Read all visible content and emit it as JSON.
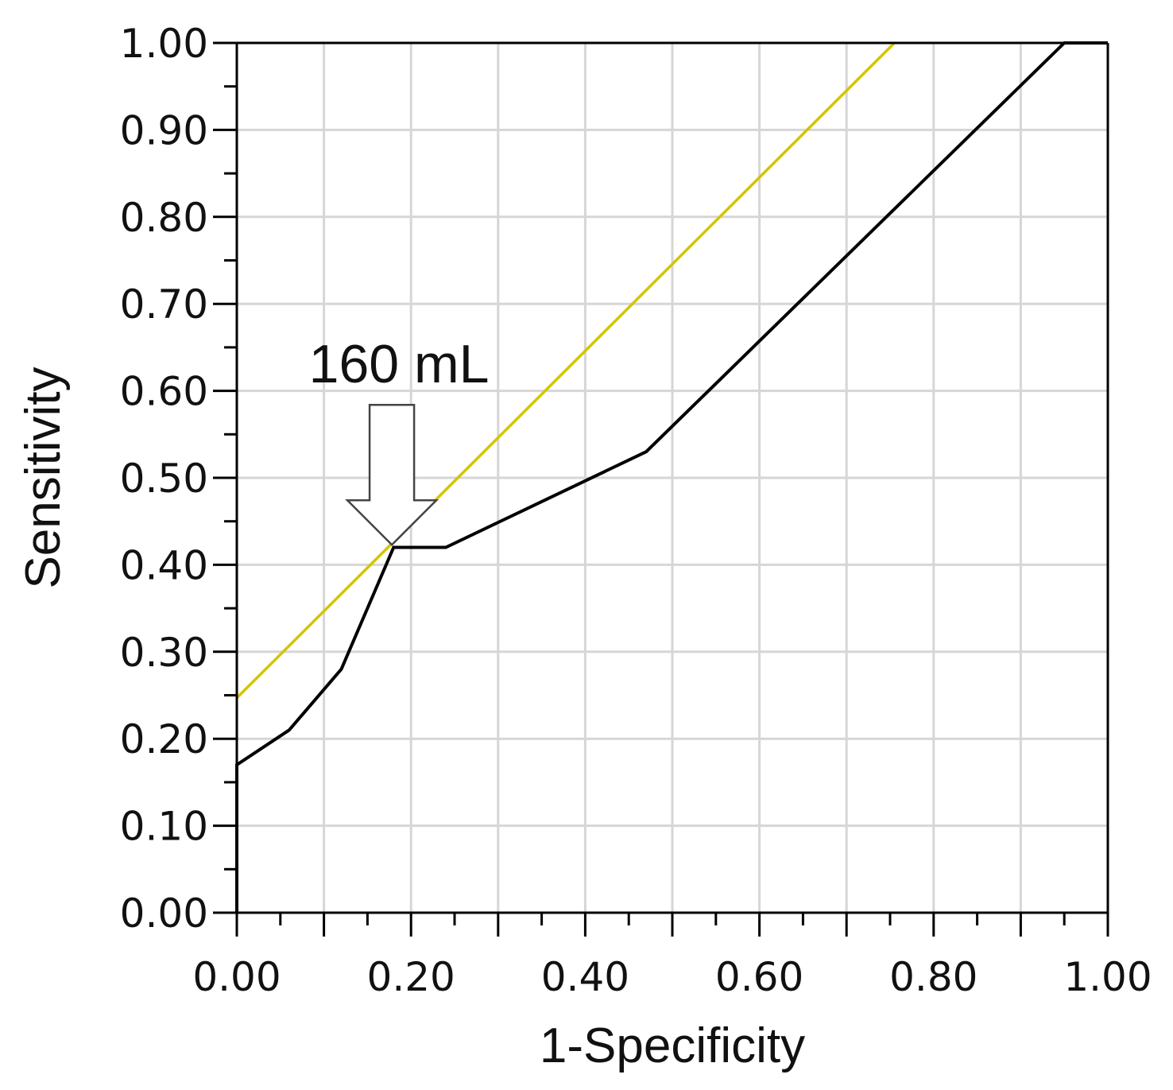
{
  "chart_data": {
    "type": "line",
    "title": "",
    "xlabel": "1-Specificity",
    "ylabel": "Sensitivity",
    "xlim": [
      0,
      1
    ],
    "ylim": [
      0,
      1
    ],
    "grid": true,
    "x_ticks": [
      "0.00",
      "0.20",
      "0.40",
      "0.60",
      "0.80",
      "1.00"
    ],
    "y_ticks": [
      "0.00",
      "0.10",
      "0.20",
      "0.30",
      "0.40",
      "0.50",
      "0.60",
      "0.70",
      "0.80",
      "0.90",
      "1.00"
    ],
    "series": [
      {
        "color": "#000000",
        "x": [
          0.0,
          0.0,
          0.06,
          0.12,
          0.18,
          0.24,
          0.47,
          0.95,
          1.0
        ],
        "y": [
          0.0,
          0.17,
          0.21,
          0.28,
          0.42,
          0.42,
          0.53,
          1.0,
          1.0
        ]
      },
      {
        "color": "#d4c400",
        "x": [
          0.0,
          0.755
        ],
        "y": [
          0.247,
          1.0
        ]
      }
    ],
    "annotations": [
      {
        "text": "160 mL",
        "x": 0.178,
        "y": 0.423
      }
    ]
  }
}
